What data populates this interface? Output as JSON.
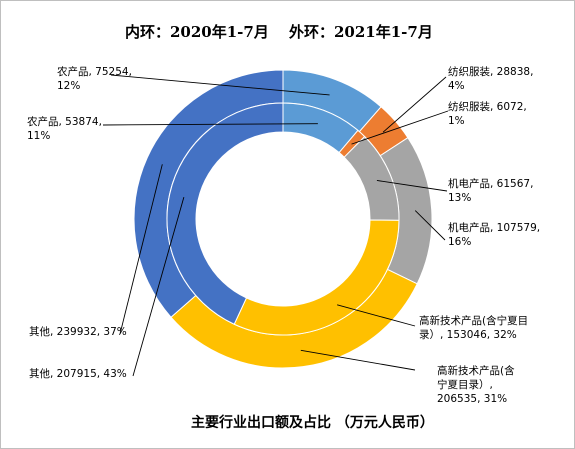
{
  "chart_data": {
    "type": "pie",
    "variant": "double-ring donut",
    "title": "主要行业出口额及占比  （万元人民币）",
    "ring_legend": {
      "inner": "内环：2020年1-7月",
      "outer": "外环：2021年1-7月"
    },
    "categories": [
      "农产品",
      "纺织服装",
      "机电产品",
      "高新技术产品(含宁夏目录）",
      "其他"
    ],
    "colors": [
      "#5b9bd5",
      "#ed7d31",
      "#a5a5a5",
      "#ffc000",
      "#4472c4"
    ],
    "series": [
      {
        "name": "内环：2020年1-7月",
        "ring": "inner",
        "values": [
          53874,
          6072,
          61567,
          153046,
          207915
        ],
        "percents": [
          "11%",
          "1%",
          "13%",
          "32%",
          "43%"
        ],
        "labels": [
          [
            "农产品, 53874,",
            "11%"
          ],
          [
            "纺织服装, 6072,",
            "1%"
          ],
          [
            "机电产品, 61567,",
            "13%"
          ],
          [
            "高新技术产品(含宁夏目",
            "录）, 153046, 32%"
          ],
          [
            "其他, 207915, 43%"
          ]
        ]
      },
      {
        "name": "外环：2021年1-7月",
        "ring": "outer",
        "values": [
          75254,
          28838,
          107579,
          206535,
          239932
        ],
        "percents": [
          "12%",
          "4%",
          "16%",
          "31%",
          "37%"
        ],
        "labels": [
          [
            "农产品, 75254,",
            "12%"
          ],
          [
            "纺织服装, 28838,",
            "4%"
          ],
          [
            "机电产品, 107579,",
            "16%"
          ],
          [
            "高新技术产品(含",
            "宁夏目录）,",
            "206535, 31%"
          ],
          [
            "其他, 239932, 37%"
          ]
        ]
      }
    ]
  }
}
